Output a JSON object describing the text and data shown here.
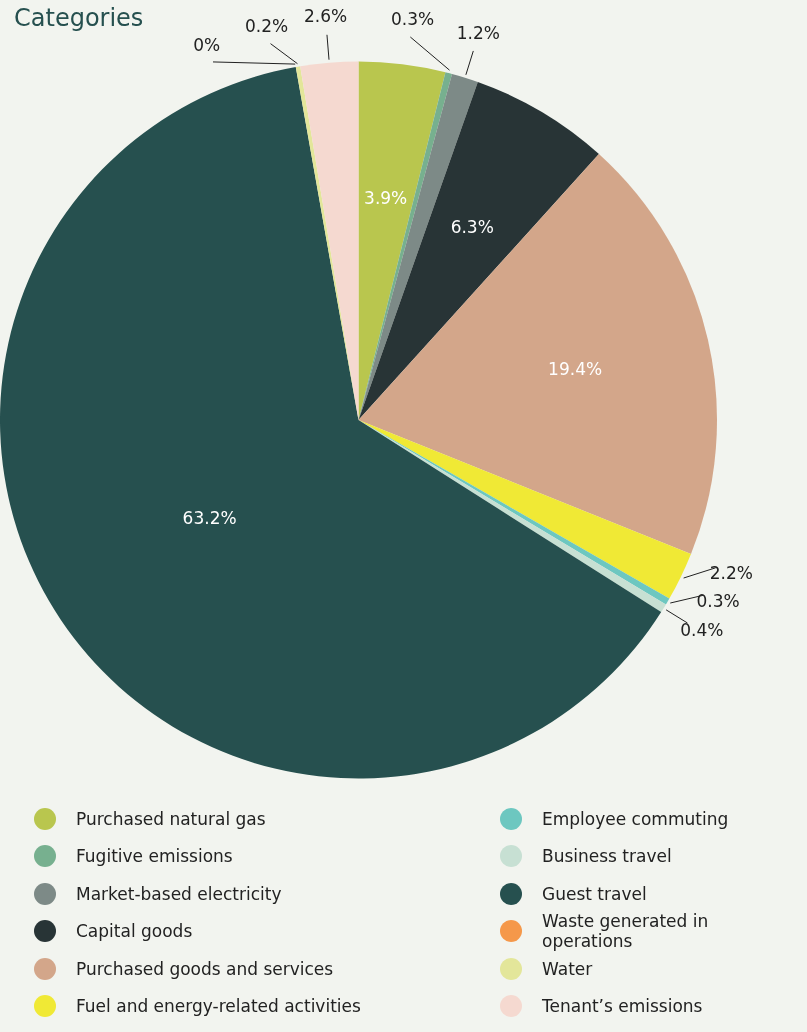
{
  "chart_data": {
    "type": "pie",
    "title": "Categories",
    "categories": [
      "Purchased natural gas",
      "Fugitive emissions",
      "Market-based electricity",
      "Capital goods",
      "Purchased goods and services",
      "Fuel and energy-related activities",
      "Employee commuting",
      "Business travel",
      "Guest travel",
      "Waste generated in operations",
      "Water",
      "Tenant’s emissions"
    ],
    "values": [
      3.9,
      0.3,
      1.2,
      6.3,
      19.4,
      2.2,
      0.3,
      0.4,
      63.2,
      0,
      0.2,
      2.6
    ],
    "value_labels": [
      "3.9%",
      "0.3%",
      "1.2%",
      "6.3%",
      "19.4%",
      "2.2%",
      "0.3%",
      "0.4%",
      "63.2%",
      "0%",
      "0.2%",
      "2.6%"
    ],
    "colors": [
      "#b9c64e",
      "#77b08f",
      "#7d8a87",
      "#283436",
      "#d3a68a",
      "#f0e935",
      "#6dc7c0",
      "#c7e0d3",
      "#26504f",
      "#f5984a",
      "#e3e69a",
      "#f5d9d0"
    ],
    "legend": "bottom"
  }
}
